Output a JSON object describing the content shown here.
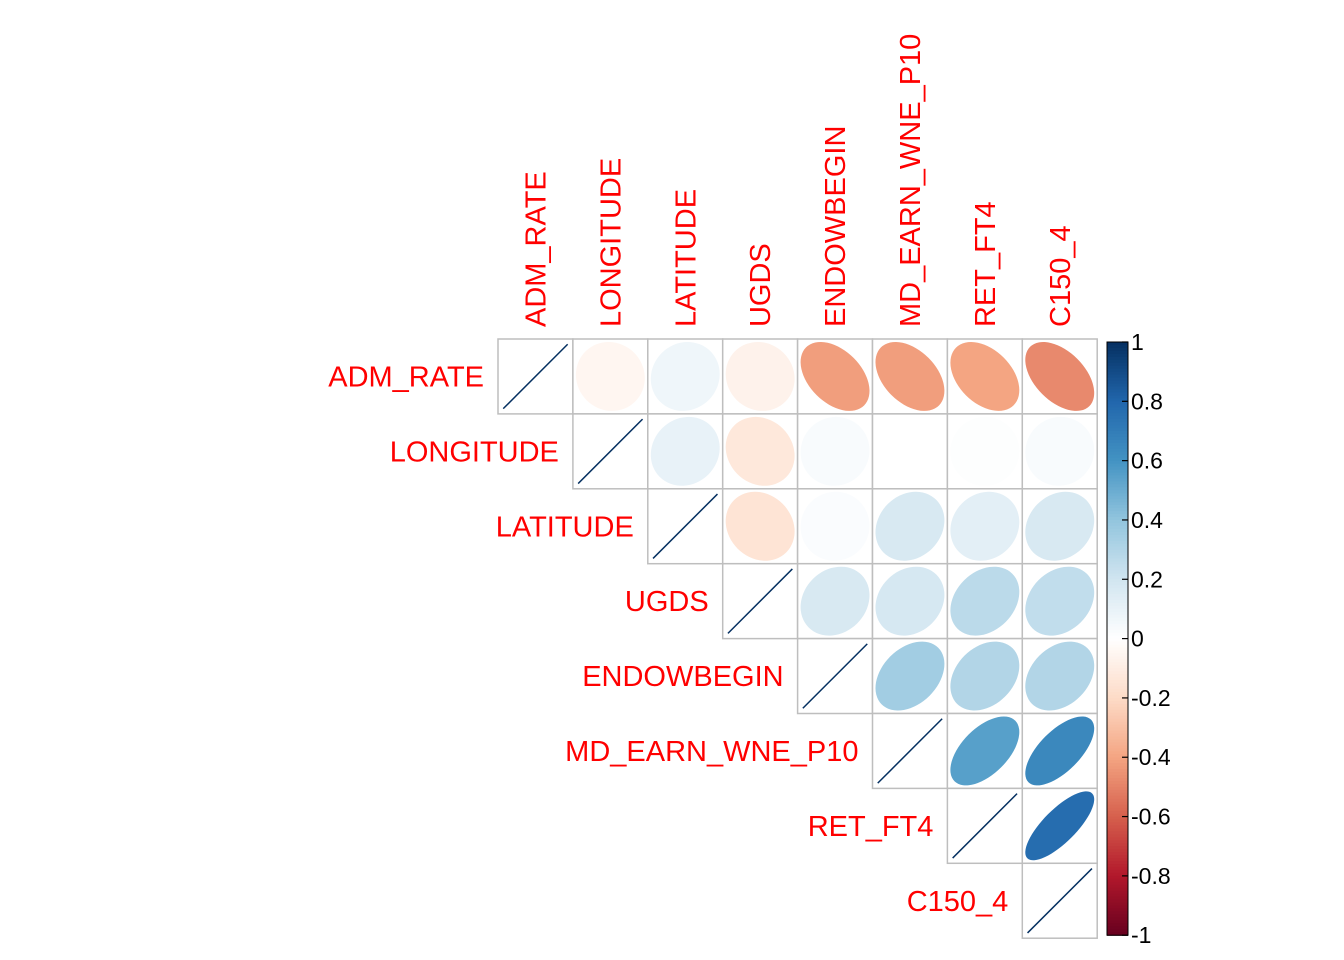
{
  "chart_data": {
    "type": "heatmap",
    "subtype": "correlation-ellipse-upper",
    "variables": [
      "ADM_RATE",
      "LONGITUDE",
      "LATITUDE",
      "UGDS",
      "ENDOWBEGIN",
      "MD_EARN_WNE_P10",
      "RET_FT4",
      "C150_4"
    ],
    "matrix": [
      [
        1.0,
        -0.05,
        0.07,
        -0.07,
        -0.42,
        -0.42,
        -0.4,
        -0.48
      ],
      [
        -0.05,
        1.0,
        0.1,
        -0.13,
        0.03,
        0.0,
        0.01,
        0.03
      ],
      [
        0.07,
        0.1,
        1.0,
        -0.15,
        0.02,
        0.17,
        0.12,
        0.17
      ],
      [
        -0.07,
        -0.13,
        -0.15,
        1.0,
        0.17,
        0.18,
        0.27,
        0.25
      ],
      [
        -0.42,
        0.03,
        0.02,
        0.17,
        1.0,
        0.35,
        0.3,
        0.3
      ],
      [
        -0.42,
        0.0,
        0.17,
        0.18,
        0.35,
        1.0,
        0.55,
        0.65
      ],
      [
        -0.4,
        0.01,
        0.12,
        0.27,
        0.3,
        0.55,
        1.0,
        0.77
      ],
      [
        -0.48,
        0.03,
        0.17,
        0.25,
        0.3,
        0.65,
        0.77,
        1.0
      ]
    ],
    "label_color": "#FF0000",
    "grid": true,
    "legend": {
      "position": "right",
      "min": -1,
      "max": 1,
      "ticks": [
        "1",
        "0.8",
        "0.6",
        "0.4",
        "0.2",
        "0",
        "-0.2",
        "-0.4",
        "-0.6",
        "-0.8",
        "-1"
      ]
    },
    "colormap": [
      "#67001F",
      "#B2182B",
      "#D6604D",
      "#F4A582",
      "#FDDBC7",
      "#FFFFFF",
      "#D1E5F0",
      "#92C5DE",
      "#4393C3",
      "#2166AC",
      "#053061"
    ]
  }
}
